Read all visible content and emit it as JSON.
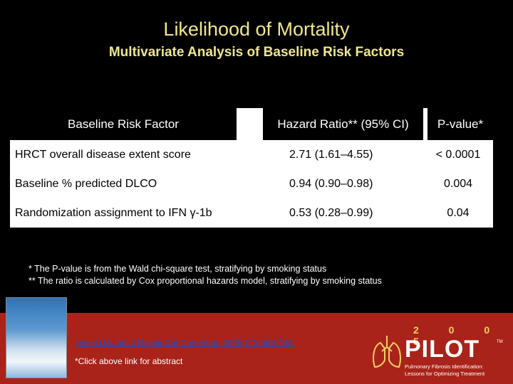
{
  "slide": {
    "title": "Likelihood of Mortality",
    "subtitle": "Multivariate Analysis of Baseline Risk Factors"
  },
  "table": {
    "headers": [
      "Baseline Risk Factor",
      "Hazard Ratio** (95% CI)",
      "P-value*"
    ],
    "rows": [
      {
        "factor": "HRCT overall disease extent score",
        "hr": "2.71 (1.61–4.55)",
        "p": "< 0.0001"
      },
      {
        "factor": "Baseline % predicted DLCO",
        "hr": "0.94 (0.90–0.98)",
        "p": "0.004"
      },
      {
        "factor": "Randomization assignment to IFN γ-1b",
        "hr": "0.53 (0.28–0.99)",
        "p": "0.04"
      }
    ]
  },
  "notes": {
    "line1": "* The P-value is from the Wald chi-square test, stratifying by smoking status",
    "line2": "** The ratio is calculated by Cox proportional hazards model, stratifying by smoking status"
  },
  "footer": {
    "citation": "Lynch DA. Am J Respir Crit Care Med. 2005;172:488-493.",
    "click_note": "*Click above link for abstract",
    "logo": {
      "year": "2 0 0 5",
      "name": "PILOT",
      "tm": "TM",
      "tagline1": "Pulmonary Fibrosis Identification:",
      "tagline2": "Lessons for Optimizing Treatment"
    }
  },
  "colors": {
    "title": "#f0e68c",
    "footer_bg": "#a9231a",
    "link": "#1a4fd0"
  },
  "icons": [
    "clouds-photo",
    "lungs-icon"
  ]
}
